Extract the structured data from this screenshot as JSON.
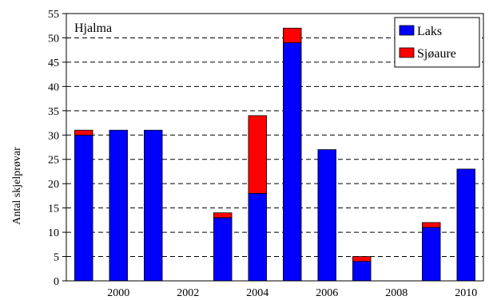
{
  "chart_data": {
    "type": "bar",
    "stacked": true,
    "title": "Hjalma",
    "xlabel": "",
    "ylabel": "Antal skjelprøvar",
    "ylim": [
      0,
      55
    ],
    "yticks": [
      0,
      5,
      10,
      15,
      20,
      25,
      30,
      35,
      40,
      45,
      50,
      55
    ],
    "xlim": [
      1998.5,
      2010.5
    ],
    "xticks": [
      2000,
      2002,
      2004,
      2006,
      2008,
      2010
    ],
    "grid": "horizontal-dashed",
    "legend_position": "top-right",
    "categories": [
      1999,
      2000,
      2001,
      2002,
      2003,
      2004,
      2005,
      2006,
      2007,
      2008,
      2009,
      2010
    ],
    "series": [
      {
        "name": "Laks",
        "color": "#0000ff",
        "values": [
          30,
          31,
          31,
          0,
          13,
          18,
          49,
          27,
          4,
          0,
          11,
          23
        ]
      },
      {
        "name": "Sjøaure",
        "color": "#ff0000",
        "values": [
          1,
          0,
          0,
          0,
          1,
          16,
          3,
          0,
          1,
          0,
          1,
          0
        ]
      }
    ]
  }
}
